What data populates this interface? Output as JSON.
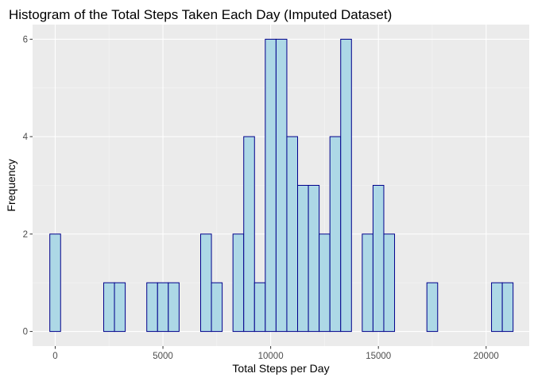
{
  "chart_data": {
    "type": "bar",
    "title": "Histogram of the Total Steps Taken Each Day (Imputed Dataset)",
    "xlabel": "Total Steps per Day",
    "ylabel": "Frequency",
    "bin_width": 500,
    "xlim": [
      -1050,
      22000
    ],
    "ylim": [
      -0.3,
      6.3
    ],
    "x_ticks": [
      0,
      5000,
      10000,
      15000,
      20000
    ],
    "x_tick_labels": [
      "0",
      "5000",
      "10000",
      "15000",
      "20000"
    ],
    "x_minor_ticks": [
      2500,
      7500,
      12500,
      17500
    ],
    "y_ticks": [
      0,
      2,
      4,
      6
    ],
    "y_tick_labels": [
      "0",
      "2",
      "4",
      "6"
    ],
    "y_minor_ticks": [
      1,
      3,
      5
    ],
    "bin_centers": [
      0,
      500,
      1000,
      1500,
      2000,
      2500,
      3000,
      3500,
      4000,
      4500,
      5000,
      5500,
      6000,
      6500,
      7000,
      7500,
      8000,
      8500,
      9000,
      9500,
      10000,
      10500,
      11000,
      11500,
      12000,
      12500,
      13000,
      13500,
      14000,
      14500,
      15000,
      15500,
      16000,
      16500,
      17000,
      17500,
      18000,
      18500,
      19000,
      19500,
      20000,
      20500,
      21000
    ],
    "values": [
      2,
      0,
      0,
      0,
      0,
      1,
      1,
      0,
      0,
      1,
      1,
      1,
      0,
      0,
      2,
      1,
      0,
      2,
      4,
      1,
      6,
      6,
      4,
      3,
      3,
      2,
      4,
      6,
      0,
      2,
      3,
      2,
      0,
      0,
      0,
      1,
      0,
      0,
      0,
      0,
      0,
      1,
      1
    ],
    "grid": true,
    "colors": {
      "panel_background": "#ebebeb",
      "grid_major": "#ffffff",
      "grid_minor": "#f5f5f5",
      "bar_fill": "#add8e6",
      "bar_outline": "#00008b"
    }
  }
}
